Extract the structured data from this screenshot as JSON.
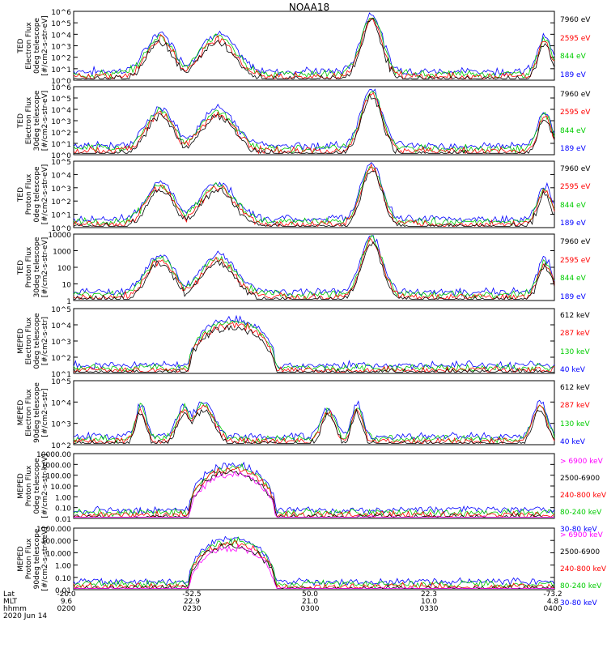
{
  "title": "NOAA18",
  "colors": {
    "blue": "#0000ff",
    "red": "#ff0000",
    "green": "#00cc00",
    "black": "#000000",
    "magenta": "#ff00ff"
  },
  "x_axis": {
    "row_labels": [
      "Lat",
      "MLT",
      "hhmm",
      "2020 Jun 14"
    ],
    "ticks": [
      {
        "lat": "-20.0",
        "mlt": "9.6",
        "time": "0200"
      },
      {
        "lat": "-52.5",
        "mlt": "22.9",
        "time": "0230"
      },
      {
        "lat": "50.0",
        "mlt": "21.0",
        "time": "0300"
      },
      {
        "lat": "22.3",
        "mlt": "10.0",
        "time": "0330"
      },
      {
        "lat": "-73.2",
        "mlt": "4.8",
        "time": "0400"
      }
    ]
  },
  "chart_data": [
    {
      "type": "line",
      "id": "p1",
      "ylabel": [
        "TED",
        "Electron Flux",
        "0deg telescope",
        "[#/cm2-s-str-eV]"
      ],
      "yticks": [
        "10^6",
        "10^5",
        "10^4",
        "10^3",
        "10^2",
        "10^1",
        "10^0"
      ],
      "log_range": [
        0,
        6
      ],
      "x": [
        "0200",
        "0400"
      ],
      "series": [
        {
          "name": "7960 eV",
          "color": "#000000"
        },
        {
          "name": "2595 eV",
          "color": "#ff0000"
        },
        {
          "name": "844 eV",
          "color": "#00cc00"
        },
        {
          "name": "189 eV",
          "color": "#0000ff"
        }
      ]
    },
    {
      "type": "line",
      "id": "p2",
      "ylabel": [
        "TED",
        "Electron Flux",
        "30deg telescope",
        "[#/cm2-s-str-eV]"
      ],
      "yticks": [
        "10^6",
        "10^5",
        "10^4",
        "10^3",
        "10^2",
        "10^1",
        "10^0"
      ],
      "log_range": [
        0,
        6
      ],
      "series": [
        {
          "name": "7960 eV",
          "color": "#000000"
        },
        {
          "name": "2595 eV",
          "color": "#ff0000"
        },
        {
          "name": "844 eV",
          "color": "#00cc00"
        },
        {
          "name": "189 eV",
          "color": "#0000ff"
        }
      ]
    },
    {
      "type": "line",
      "id": "p3",
      "ylabel": [
        "TED",
        "Proton Flux",
        "0deg telescope",
        "[#/cm2-s-str-eV]"
      ],
      "yticks": [
        "10^5",
        "10^4",
        "10^3",
        "10^2",
        "10^1",
        "10^0"
      ],
      "log_range": [
        0,
        5
      ],
      "series": [
        {
          "name": "7960 eV",
          "color": "#000000"
        },
        {
          "name": "2595 eV",
          "color": "#ff0000"
        },
        {
          "name": "844 eV",
          "color": "#00cc00"
        },
        {
          "name": "189 eV",
          "color": "#0000ff"
        }
      ]
    },
    {
      "type": "line",
      "id": "p4",
      "ylabel": [
        "TED",
        "Proton Flux",
        "30deg telescope",
        "[#/cm2-s-str-eV]"
      ],
      "yticks": [
        "10000",
        "1000",
        "100",
        "10",
        "1"
      ],
      "log_range": [
        0,
        4
      ],
      "series": [
        {
          "name": "7960 eV",
          "color": "#000000"
        },
        {
          "name": "2595 eV",
          "color": "#ff0000"
        },
        {
          "name": "844 eV",
          "color": "#00cc00"
        },
        {
          "name": "189 eV",
          "color": "#0000ff"
        }
      ]
    },
    {
      "type": "line",
      "id": "p5",
      "ylabel": [
        "MEPED",
        "Electron Flux",
        "0deg telescope",
        "[#/cm2-s-str]"
      ],
      "yticks": [
        "10^5",
        "10^4",
        "10^3",
        "10^2",
        "10^1"
      ],
      "log_range": [
        1,
        5
      ],
      "series": [
        {
          "name": "612 keV",
          "color": "#000000"
        },
        {
          "name": "287 keV",
          "color": "#ff0000"
        },
        {
          "name": "130 keV",
          "color": "#00cc00"
        },
        {
          "name": "40 keV",
          "color": "#0000ff"
        }
      ]
    },
    {
      "type": "line",
      "id": "p6",
      "ylabel": [
        "MEPED",
        "Electron Flux",
        "90deg telescope",
        "[#/cm2-s-str]"
      ],
      "yticks": [
        "10^5",
        "10^4",
        "10^3",
        "10^2"
      ],
      "log_range": [
        1.6,
        5
      ],
      "series": [
        {
          "name": "612 keV",
          "color": "#000000"
        },
        {
          "name": "287 keV",
          "color": "#ff0000"
        },
        {
          "name": "130 keV",
          "color": "#00cc00"
        },
        {
          "name": "40 keV",
          "color": "#0000ff"
        }
      ]
    },
    {
      "type": "line",
      "id": "p7",
      "ylabel": [
        "MEPED",
        "Proton Flux",
        "0deg telescope",
        "[#/cm2-s-str-keV]"
      ],
      "yticks": [
        "10000.00",
        "1000.00",
        "100.00",
        "10.00",
        "1.00",
        "0.10",
        "0.01"
      ],
      "log_range": [
        -2,
        4
      ],
      "series": [
        {
          "name": "> 6900 keV",
          "color": "#ff00ff"
        },
        {
          "name": "2500-6900",
          "color": "#000000"
        },
        {
          "name": "240-800 keV",
          "color": "#ff0000"
        },
        {
          "name": "80-240 keV",
          "color": "#00cc00"
        },
        {
          "name": "30-80 keV",
          "color": "#0000ff"
        }
      ]
    },
    {
      "type": "line",
      "id": "p8",
      "ylabel": [
        "MEPED",
        "Proton Flux",
        "90deg telescope",
        "[#/cm2-s-str-keV]"
      ],
      "yticks": [
        "1000.000",
        "100.000",
        "10.000",
        "1.00",
        "0.10",
        "0.01"
      ],
      "log_range": [
        -2,
        3.4
      ],
      "series": [
        {
          "name": "> 6900 keV",
          "color": "#ff00ff"
        },
        {
          "name": "2500-6900",
          "color": "#000000"
        },
        {
          "name": "240-800 keV",
          "color": "#ff0000"
        },
        {
          "name": "80-240 keV",
          "color": "#00cc00"
        },
        {
          "name": "30-80 keV",
          "color": "#0000ff"
        }
      ]
    }
  ]
}
